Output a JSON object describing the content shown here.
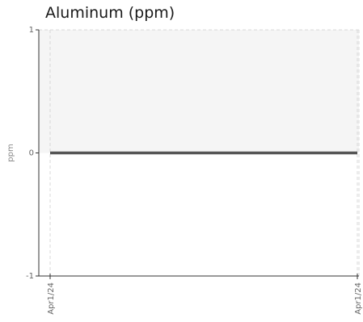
{
  "chart_data": {
    "type": "line",
    "title": "Aluminum (ppm)",
    "xlabel": "",
    "ylabel": "ppm",
    "x": [
      "Apr1/24",
      "Apr1/24"
    ],
    "series": [
      {
        "values": [
          0,
          0
        ]
      }
    ],
    "x_tick_labels": [
      "Apr1/24",
      "Apr1/24"
    ],
    "y_ticks": [
      1,
      0,
      -1
    ],
    "y_tick_labels": [
      "1",
      "0",
      "-1"
    ],
    "ylim": [
      -1,
      1
    ],
    "grid": true,
    "shaded_band": [
      0,
      1
    ],
    "colors": {
      "line": "#555555",
      "band": "#f5f5f5",
      "grid": "#d8d8d8",
      "axis": "#333333"
    }
  }
}
